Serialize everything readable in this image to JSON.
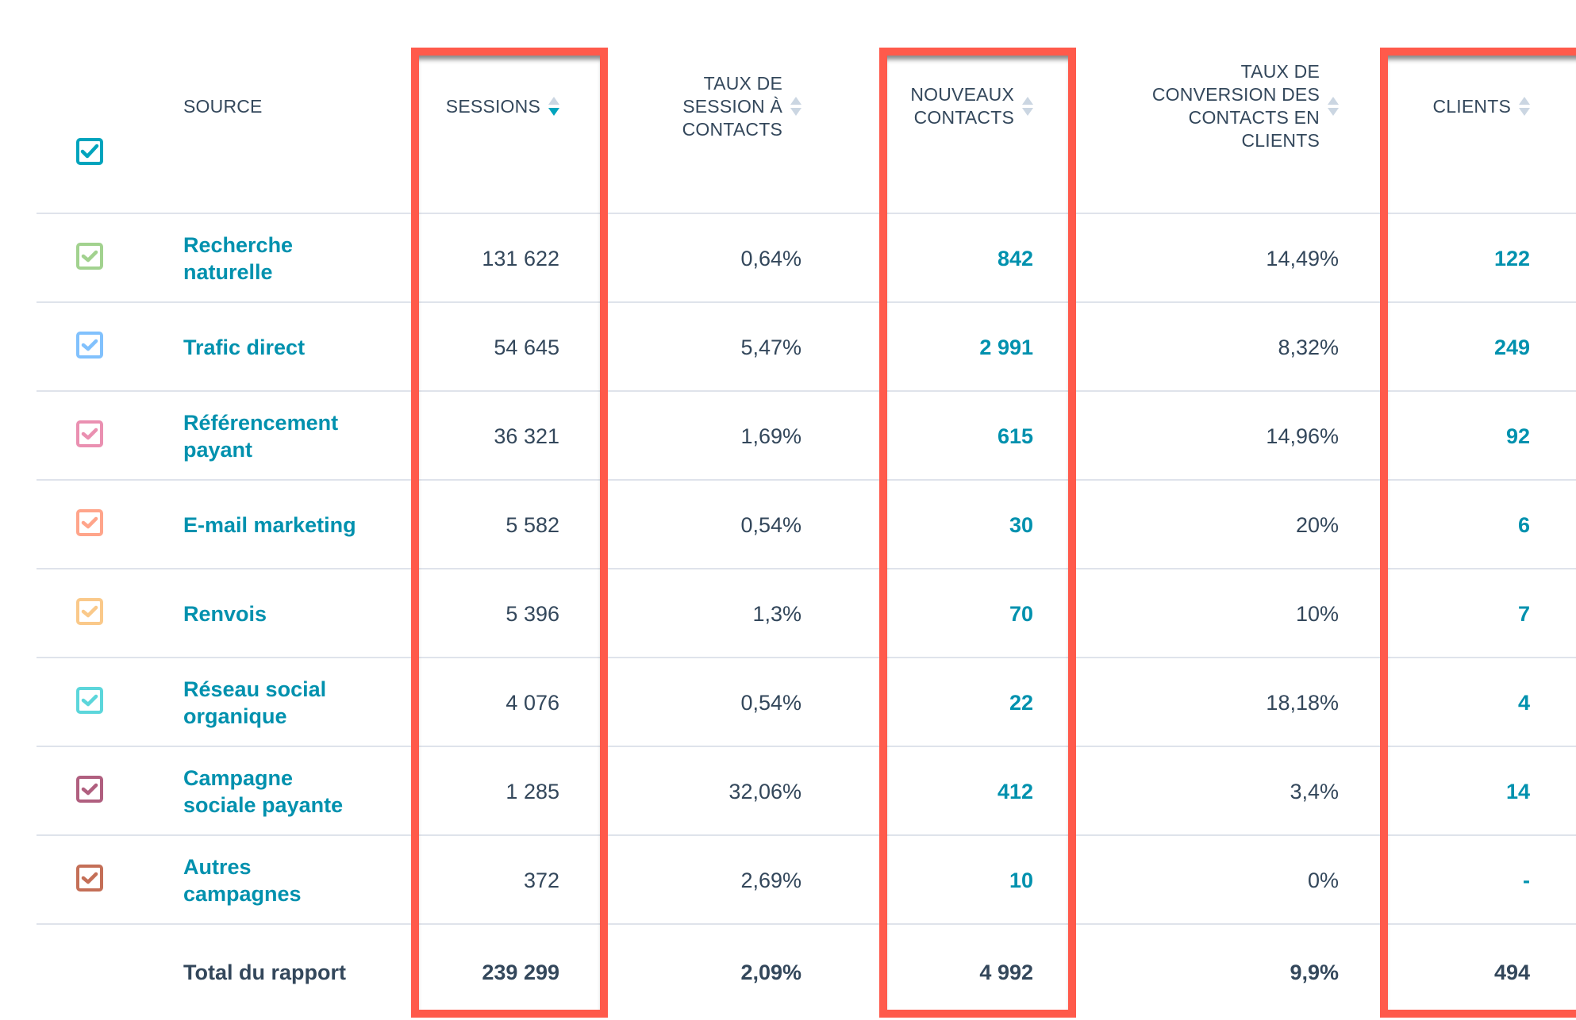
{
  "header": {
    "select_all_checked": true,
    "source": "SOURCE",
    "sessions": "SESSIONS",
    "session_rate_lines": [
      "TAUX DE",
      "SESSION À",
      "CONTACTS"
    ],
    "new_contacts_lines": [
      "NOUVEAUX",
      "CONTACTS"
    ],
    "conversion_lines": [
      "TAUX DE",
      "CONVERSION DES",
      "CONTACTS EN",
      "CLIENTS"
    ],
    "clients": "CLIENTS",
    "sorted_column": "sessions",
    "sort_direction": "descending"
  },
  "rows": [
    {
      "source_lines": [
        "Recherche",
        "naturelle"
      ],
      "color": "#a2d28f",
      "sessions": "131 622",
      "session_rate": "0,64%",
      "new_contacts": "842",
      "conversion": "14,49%",
      "clients": "122"
    },
    {
      "source_lines": [
        "Trafic direct"
      ],
      "color": "#81c1fd",
      "sessions": "54 645",
      "session_rate": "5,47%",
      "new_contacts": "2 991",
      "conversion": "8,32%",
      "clients": "249"
    },
    {
      "source_lines": [
        "Référencement",
        "payant"
      ],
      "color": "#ea90b1",
      "sessions": "36 321",
      "session_rate": "1,69%",
      "new_contacts": "615",
      "conversion": "14,96%",
      "clients": "92"
    },
    {
      "source_lines": [
        "E-mail marketing"
      ],
      "color": "#ffa58b",
      "sessions": "5 582",
      "session_rate": "0,54%",
      "new_contacts": "30",
      "conversion": "20%",
      "clients": "6"
    },
    {
      "source_lines": [
        "Renvois"
      ],
      "color": "#fac98a",
      "sessions": "5 396",
      "session_rate": "1,3%",
      "new_contacts": "70",
      "conversion": "10%",
      "clients": "7"
    },
    {
      "source_lines": [
        "Réseau social",
        "organique"
      ],
      "color": "#5cd6db",
      "sessions": "4 076",
      "session_rate": "0,54%",
      "new_contacts": "22",
      "conversion": "18,18%",
      "clients": "4"
    },
    {
      "source_lines": [
        "Campagne",
        "sociale payante"
      ],
      "color": "#b05f7f",
      "sessions": "1 285",
      "session_rate": "32,06%",
      "new_contacts": "412",
      "conversion": "3,4%",
      "clients": "14"
    },
    {
      "source_lines": [
        "Autres",
        "campagnes"
      ],
      "color": "#c46f57",
      "sessions": "372",
      "session_rate": "2,69%",
      "new_contacts": "10",
      "conversion": "0%",
      "clients": "-"
    }
  ],
  "total": {
    "label": "Total du rapport",
    "sessions": "239 299",
    "session_rate": "2,09%",
    "new_contacts": "4 992",
    "conversion": "9,9%",
    "clients": "494"
  },
  "colors": {
    "accent": "#00a4bd",
    "link": "#0091ae",
    "text": "#33475b",
    "highlight": "#ff5a4b",
    "divider": "#dfe3eb"
  }
}
